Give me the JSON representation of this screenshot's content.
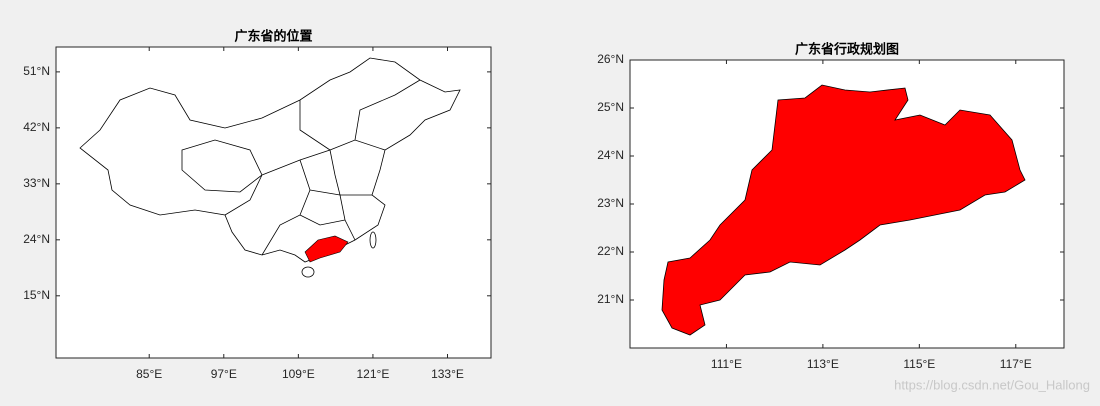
{
  "figure": {
    "watermark": "https://blog.csdn.net/Gou_Hallong"
  },
  "maps": [
    {
      "title": "广东省的位置",
      "xlim": [
        70,
        140
      ],
      "ylim": [
        5,
        55
      ],
      "xticks": [
        {
          "value": 85,
          "label": "85°E"
        },
        {
          "value": 97,
          "label": "97°E"
        },
        {
          "value": 109,
          "label": "109°E"
        },
        {
          "value": 121,
          "label": "121°E"
        },
        {
          "value": 133,
          "label": "133°E"
        }
      ],
      "yticks": [
        {
          "value": 15,
          "label": "15°N"
        },
        {
          "value": 24,
          "label": "24°N"
        },
        {
          "value": 33,
          "label": "33°N"
        },
        {
          "value": 42,
          "label": "42°N"
        },
        {
          "value": 51,
          "label": "51°N"
        }
      ]
    },
    {
      "title": "广东省行政规划图",
      "xlim": [
        109,
        118
      ],
      "ylim": [
        20,
        26
      ],
      "xticks": [
        {
          "value": 111,
          "label": "111°E"
        },
        {
          "value": 113,
          "label": "113°E"
        },
        {
          "value": 115,
          "label": "115°E"
        },
        {
          "value": 117,
          "label": "117°E"
        }
      ],
      "yticks": [
        {
          "value": 21,
          "label": "21°N"
        },
        {
          "value": 22,
          "label": "22°N"
        },
        {
          "value": 23,
          "label": "23°N"
        },
        {
          "value": 24,
          "label": "24°N"
        },
        {
          "value": 25,
          "label": "25°N"
        },
        {
          "value": 26,
          "label": "26°N"
        }
      ]
    }
  ]
}
